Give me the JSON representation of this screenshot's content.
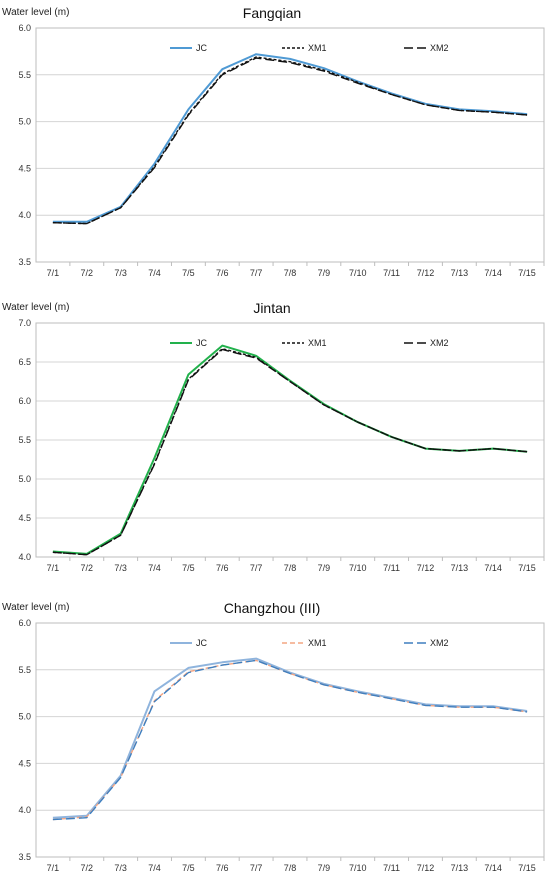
{
  "chart_data": [
    {
      "type": "line",
      "title": "Fangqian",
      "ylabel": "Water level (m)",
      "xlabel": "",
      "ylim": [
        3.5,
        6.0
      ],
      "yticks": [
        "3.5",
        "4.0",
        "4.5",
        "5.0",
        "5.5",
        "6.0"
      ],
      "categories": [
        "7/1",
        "7/2",
        "7/3",
        "7/4",
        "7/5",
        "7/6",
        "7/7",
        "7/8",
        "7/9",
        "7/10",
        "7/11",
        "7/12",
        "7/13",
        "7/14",
        "7/15"
      ],
      "legend_position": "top",
      "series": [
        {
          "name": "JC",
          "color": "#4f9ad4",
          "dash": "",
          "values": [
            3.93,
            3.93,
            4.09,
            4.55,
            5.13,
            5.56,
            5.72,
            5.67,
            5.57,
            5.43,
            5.3,
            5.19,
            5.13,
            5.11,
            5.08
          ]
        },
        {
          "name": "XM1",
          "color": "#111111",
          "dash": "3,2",
          "values": [
            3.92,
            3.91,
            4.08,
            4.52,
            5.08,
            5.51,
            5.69,
            5.64,
            5.55,
            5.42,
            5.29,
            5.18,
            5.12,
            5.1,
            5.07
          ]
        },
        {
          "name": "XM2",
          "color": "#111111",
          "dash": "9,4",
          "values": [
            3.92,
            3.91,
            4.08,
            4.51,
            5.07,
            5.5,
            5.68,
            5.63,
            5.54,
            5.41,
            5.29,
            5.18,
            5.12,
            5.1,
            5.07
          ]
        }
      ]
    },
    {
      "type": "line",
      "title": "Jintan",
      "ylabel": "Water level (m)",
      "xlabel": "",
      "ylim": [
        4.0,
        7.0
      ],
      "yticks": [
        "4.0",
        "4.5",
        "5.0",
        "5.5",
        "6.0",
        "6.5",
        "7.0"
      ],
      "categories": [
        "7/1",
        "7/2",
        "7/3",
        "7/4",
        "7/5",
        "7/6",
        "7/7",
        "7/8",
        "7/9",
        "7/10",
        "7/11",
        "7/12",
        "7/13",
        "7/14",
        "7/15"
      ],
      "legend_position": "top",
      "series": [
        {
          "name": "JC",
          "color": "#22b14c",
          "dash": "",
          "values": [
            4.07,
            4.04,
            4.3,
            5.27,
            6.34,
            6.71,
            6.58,
            6.26,
            5.96,
            5.73,
            5.54,
            5.39,
            5.36,
            5.39,
            5.35
          ]
        },
        {
          "name": "XM1",
          "color": "#111111",
          "dash": "3,2",
          "values": [
            4.06,
            4.03,
            4.28,
            5.2,
            6.28,
            6.67,
            6.56,
            6.25,
            5.95,
            5.73,
            5.54,
            5.39,
            5.36,
            5.39,
            5.35
          ]
        },
        {
          "name": "XM2",
          "color": "#111111",
          "dash": "9,4",
          "values": [
            4.06,
            4.03,
            4.28,
            5.19,
            6.27,
            6.66,
            6.55,
            6.25,
            5.95,
            5.73,
            5.54,
            5.39,
            5.36,
            5.39,
            5.35
          ]
        }
      ]
    },
    {
      "type": "line",
      "title": "Changzhou (III)",
      "ylabel": "Water level (m)",
      "xlabel": "",
      "ylim": [
        3.5,
        6.0
      ],
      "yticks": [
        "3.5",
        "4.0",
        "4.5",
        "5.0",
        "5.5",
        "6.0"
      ],
      "categories": [
        "7/1",
        "7/2",
        "7/3",
        "7/4",
        "7/5",
        "7/6",
        "7/7",
        "7/8",
        "7/9",
        "7/10",
        "7/11",
        "7/12",
        "7/13",
        "7/14",
        "7/15"
      ],
      "legend_position": "top",
      "series": [
        {
          "name": "JC",
          "color": "#8fb4dd",
          "dash": "",
          "values": [
            3.92,
            3.94,
            4.37,
            5.27,
            5.52,
            5.58,
            5.62,
            5.47,
            5.35,
            5.27,
            5.2,
            5.13,
            5.11,
            5.11,
            5.06
          ]
        },
        {
          "name": "XM1",
          "color": "#f4a582",
          "dash": "5,3",
          "values": [
            3.9,
            3.93,
            4.35,
            5.17,
            5.48,
            5.55,
            5.6,
            5.46,
            5.34,
            5.26,
            5.19,
            5.12,
            5.1,
            5.1,
            5.05
          ]
        },
        {
          "name": "XM2",
          "color": "#3f7fbf",
          "dash": "9,4",
          "values": [
            3.9,
            3.92,
            4.35,
            5.16,
            5.47,
            5.55,
            5.6,
            5.46,
            5.34,
            5.26,
            5.19,
            5.12,
            5.1,
            5.1,
            5.05
          ]
        }
      ]
    }
  ]
}
